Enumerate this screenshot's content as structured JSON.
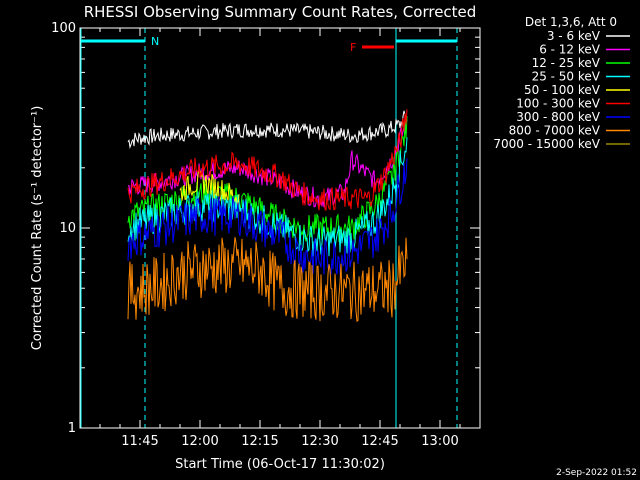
{
  "chart_data": {
    "type": "line",
    "title": "RHESSI Observing Summary Count Rates, Corrected",
    "xlabel": "Start Time (06-Oct-17 11:30:02)",
    "ylabel": "Corrected Count Rate (s⁻¹ detector⁻¹)",
    "yscale": "log",
    "ylim": [
      1,
      100
    ],
    "xlim_minutes": [
      0,
      100
    ],
    "x_ticks": [
      {
        "label": "11:45",
        "minutes": 15
      },
      {
        "label": "12:00",
        "minutes": 30
      },
      {
        "label": "12:15",
        "minutes": 45
      },
      {
        "label": "12:30",
        "minutes": 60
      },
      {
        "label": "12:45",
        "minutes": 75
      },
      {
        "label": "13:00",
        "minutes": 90
      }
    ],
    "y_ticks": [
      {
        "label": "1",
        "value": 1
      },
      {
        "label": "10",
        "value": 10
      },
      {
        "label": "100",
        "value": 100
      }
    ],
    "legend_title": "Det 1,3,6, Att 0",
    "legend_position": "right",
    "series": [
      {
        "name": "3 - 6 keV",
        "color": "#ffffff",
        "x": [
          12,
          14,
          20,
          30,
          40,
          50,
          60,
          68,
          73,
          77,
          80,
          82
        ],
        "y": [
          27,
          28,
          29,
          30,
          31,
          31,
          30,
          29,
          30,
          31,
          33,
          38
        ]
      },
      {
        "name": "6 - 12 keV",
        "color": "#ff00ff",
        "x": [
          12,
          20,
          30,
          40,
          50,
          55,
          60,
          66,
          68,
          70,
          74,
          78,
          82
        ],
        "y": [
          16,
          17,
          19,
          20,
          17,
          15,
          14,
          15,
          22,
          20,
          17,
          22,
          35
        ]
      },
      {
        "name": "12 - 25 keV",
        "color": "#00ff00",
        "x": [
          12,
          20,
          27,
          32,
          40,
          50,
          55,
          60,
          68,
          74,
          78,
          82
        ],
        "y": [
          11.5,
          13,
          14.5,
          15,
          14,
          11,
          10,
          10,
          10,
          13,
          18,
          33
        ]
      },
      {
        "name": "25 - 50 keV",
        "color": "#00ffff",
        "x": [
          12,
          20,
          30,
          40,
          50,
          55,
          60,
          68,
          74,
          78,
          82
        ],
        "y": [
          10,
          11.5,
          13,
          12.5,
          10,
          9,
          8.5,
          9,
          11,
          15,
          28
        ]
      },
      {
        "name": "50 - 100 keV",
        "color": "#ffff00",
        "x": [
          25,
          28,
          31,
          34,
          37,
          40
        ],
        "y": [
          15,
          16.5,
          17,
          16,
          15,
          14
        ]
      },
      {
        "name": "100 - 300 keV",
        "color": "#ff0000",
        "x": [
          12,
          20,
          30,
          40,
          50,
          55,
          60,
          68,
          72,
          76,
          80,
          82
        ],
        "y": [
          15,
          17,
          20,
          21,
          18,
          15,
          14,
          14,
          14,
          18,
          27,
          40
        ]
      },
      {
        "name": "300 - 800 keV",
        "color": "#0000ff",
        "x": [
          12,
          20,
          30,
          40,
          50,
          55,
          60,
          68,
          74,
          78,
          82
        ],
        "y": [
          8.5,
          10,
          11.5,
          11.5,
          9,
          7.5,
          7,
          7.5,
          9,
          12,
          22
        ]
      },
      {
        "name": "800 - 7000 keV",
        "color": "#ff8800",
        "x": [
          12,
          20,
          25,
          30,
          40,
          45,
          50,
          60,
          68,
          74,
          78,
          82
        ],
        "y": [
          4.8,
          5.2,
          6,
          6.3,
          6.5,
          6.2,
          5,
          4.8,
          4.8,
          4.9,
          5,
          7
        ]
      },
      {
        "name": "7000 - 15000 keV",
        "color": "#998800",
        "x": [],
        "y": []
      }
    ],
    "annotations": [
      {
        "text": "N",
        "color": "#00ffff"
      },
      {
        "text": "F",
        "color": "#ff0000"
      }
    ],
    "timestamp": "2-Sep-2022 01:52"
  }
}
